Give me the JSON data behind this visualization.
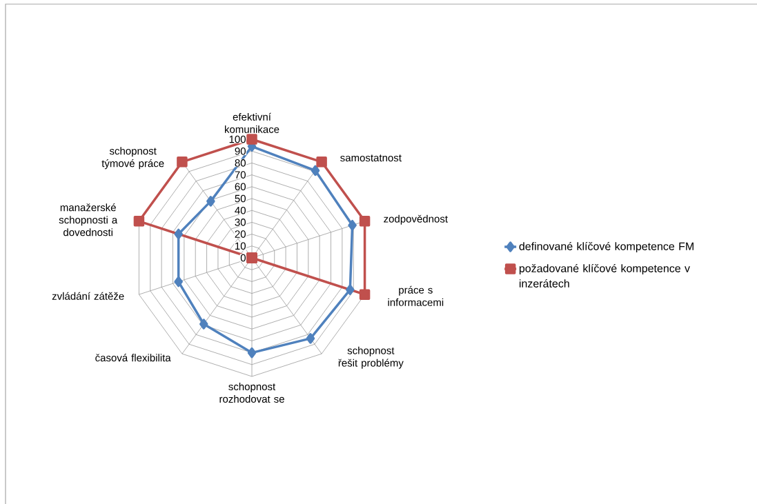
{
  "chart_data": {
    "type": "radar",
    "categories": [
      "efektivní komunikace",
      "samostatnost",
      "zodpovědnost",
      "práce s informacemi",
      "schopnost řešit problémy",
      "schopnost rozhodovat se",
      "časová flexibilita",
      "zvládání zátěže",
      "manažerské schopnosti a dovednosti",
      "schopnost týmové práce"
    ],
    "series": [
      {
        "name": "definované klíčové kompetence FM",
        "color": "#4f81bd",
        "marker": "diamond",
        "values": [
          94,
          91,
          89,
          87,
          84,
          80,
          69,
          65,
          65,
          59
        ]
      },
      {
        "name": "požadované klíčové kompetence v inzerátech",
        "color": "#c0504d",
        "marker": "square",
        "values": [
          100,
          100,
          100,
          100,
          0,
          0,
          0,
          0,
          100,
          100
        ]
      }
    ],
    "ylim": [
      0,
      100
    ],
    "yticks": [
      0,
      10,
      20,
      30,
      40,
      50,
      60,
      70,
      80,
      90,
      100
    ],
    "grid": true,
    "legend": "right"
  }
}
